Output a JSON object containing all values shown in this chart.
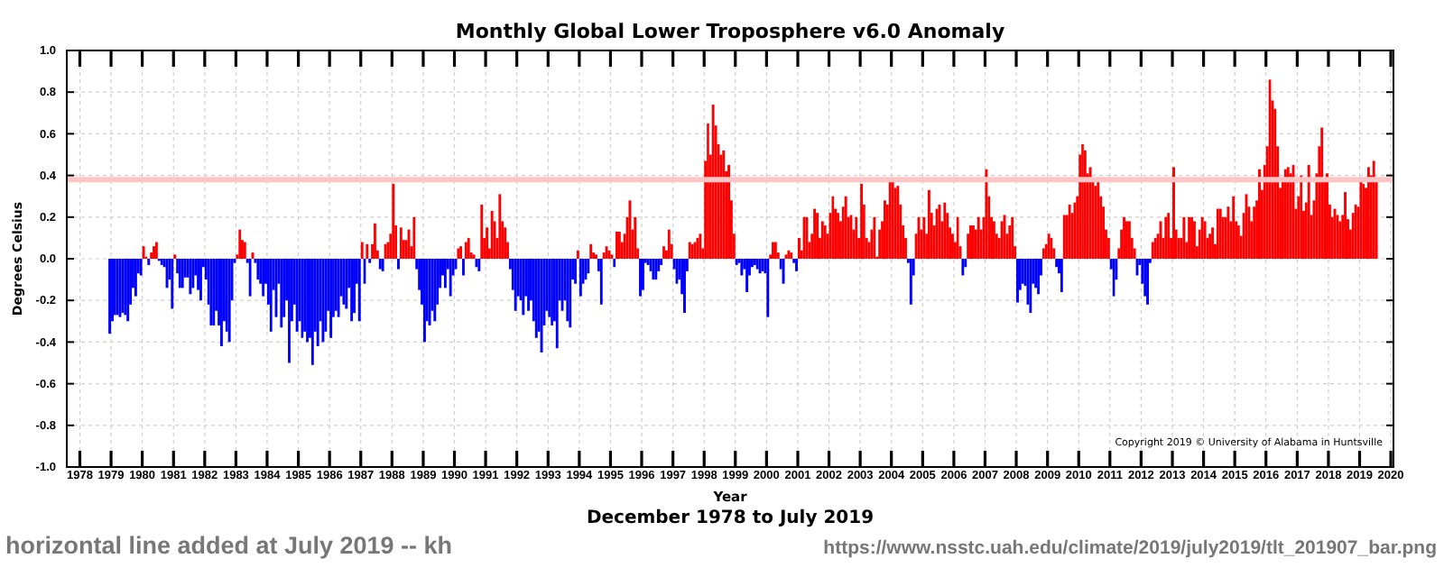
{
  "chart_data": {
    "type": "bar",
    "title": "Monthly Global Lower Troposphere v6.0 Anomaly",
    "xlabel": "Year",
    "ylabel": "Degrees Celsius",
    "annotations": [
      "December 1978 to July 2019",
      "Copyright 2019 © University of Alabama in Huntsville",
      "horizontal line added at July 2019 -- kh",
      "https://www.nsstc.uah.edu/climate/2019/july2019/tlt_201907_bar.png"
    ],
    "x": [
      "1978-12",
      "1979-01",
      "1979-02",
      "1979-03",
      "1979-04",
      "1979-05",
      "1979-06",
      "1979-07",
      "1979-08",
      "1979-09",
      "1979-10",
      "1979-11",
      "1979-12",
      "1980-01",
      "1980-02",
      "1980-03",
      "1980-04",
      "1980-05",
      "1980-06",
      "1980-07",
      "1980-08",
      "1980-09",
      "1980-10",
      "1980-11",
      "1980-12",
      "1981-01",
      "1981-02",
      "1981-03",
      "1981-04",
      "1981-05",
      "1981-06",
      "1981-07",
      "1981-08",
      "1981-09",
      "1981-10",
      "1981-11",
      "1981-12",
      "1982-01",
      "1982-02",
      "1982-03",
      "1982-04",
      "1982-05",
      "1982-06",
      "1982-07",
      "1982-08",
      "1982-09",
      "1982-10",
      "1982-11",
      "1982-12",
      "1983-01",
      "1983-02",
      "1983-03",
      "1983-04",
      "1983-05",
      "1983-06",
      "1983-07",
      "1983-08",
      "1983-09",
      "1983-10",
      "1983-11",
      "1983-12",
      "1984-01",
      "1984-02",
      "1984-03",
      "1984-04",
      "1984-05",
      "1984-06",
      "1984-07",
      "1984-08",
      "1984-09",
      "1984-10",
      "1984-11",
      "1984-12",
      "1985-01",
      "1985-02",
      "1985-03",
      "1985-04",
      "1985-05",
      "1985-06",
      "1985-07",
      "1985-08",
      "1985-09",
      "1985-10",
      "1985-11",
      "1985-12",
      "1986-01",
      "1986-02",
      "1986-03",
      "1986-04",
      "1986-05",
      "1986-06",
      "1986-07",
      "1986-08",
      "1986-09",
      "1986-10",
      "1986-11",
      "1986-12",
      "1987-01",
      "1987-02",
      "1987-03",
      "1987-04",
      "1987-05",
      "1987-06",
      "1987-07",
      "1987-08",
      "1987-09",
      "1987-10",
      "1987-11",
      "1987-12",
      "1988-01",
      "1988-02",
      "1988-03",
      "1988-04",
      "1988-05",
      "1988-06",
      "1988-07",
      "1988-08",
      "1988-09",
      "1988-10",
      "1988-11",
      "1988-12",
      "1989-01",
      "1989-02",
      "1989-03",
      "1989-04",
      "1989-05",
      "1989-06",
      "1989-07",
      "1989-08",
      "1989-09",
      "1989-10",
      "1989-11",
      "1989-12",
      "1990-01",
      "1990-02",
      "1990-03",
      "1990-04",
      "1990-05",
      "1990-06",
      "1990-07",
      "1990-08",
      "1990-09",
      "1990-10",
      "1990-11",
      "1990-12",
      "1991-01",
      "1991-02",
      "1991-03",
      "1991-04",
      "1991-05",
      "1991-06",
      "1991-07",
      "1991-08",
      "1991-09",
      "1991-10",
      "1991-11",
      "1991-12",
      "1992-01",
      "1992-02",
      "1992-03",
      "1992-04",
      "1992-05",
      "1992-06",
      "1992-07",
      "1992-08",
      "1992-09",
      "1992-10",
      "1992-11",
      "1992-12",
      "1993-01",
      "1993-02",
      "1993-03",
      "1993-04",
      "1993-05",
      "1993-06",
      "1993-07",
      "1993-08",
      "1993-09",
      "1993-10",
      "1993-11",
      "1993-12",
      "1994-01",
      "1994-02",
      "1994-03",
      "1994-04",
      "1994-05",
      "1994-06",
      "1994-07",
      "1994-08",
      "1994-09",
      "1994-10",
      "1994-11",
      "1994-12",
      "1995-01",
      "1995-02",
      "1995-03",
      "1995-04",
      "1995-05",
      "1995-06",
      "1995-07",
      "1995-08",
      "1995-09",
      "1995-10",
      "1995-11",
      "1995-12",
      "1996-01",
      "1996-02",
      "1996-03",
      "1996-04",
      "1996-05",
      "1996-06",
      "1996-07",
      "1996-08",
      "1996-09",
      "1996-10",
      "1996-11",
      "1996-12",
      "1997-01",
      "1997-02",
      "1997-03",
      "1997-04",
      "1997-05",
      "1997-06",
      "1997-07",
      "1997-08",
      "1997-09",
      "1997-10",
      "1997-11",
      "1997-12",
      "1998-01",
      "1998-02",
      "1998-03",
      "1998-04",
      "1998-05",
      "1998-06",
      "1998-07",
      "1998-08",
      "1998-09",
      "1998-10",
      "1998-11",
      "1998-12",
      "1999-01",
      "1999-02",
      "1999-03",
      "1999-04",
      "1999-05",
      "1999-06",
      "1999-07",
      "1999-08",
      "1999-09",
      "1999-10",
      "1999-11",
      "1999-12",
      "2000-01",
      "2000-02",
      "2000-03",
      "2000-04",
      "2000-05",
      "2000-06",
      "2000-07",
      "2000-08",
      "2000-09",
      "2000-10",
      "2000-11",
      "2000-12",
      "2001-01",
      "2001-02",
      "2001-03",
      "2001-04",
      "2001-05",
      "2001-06",
      "2001-07",
      "2001-08",
      "2001-09",
      "2001-10",
      "2001-11",
      "2001-12",
      "2002-01",
      "2002-02",
      "2002-03",
      "2002-04",
      "2002-05",
      "2002-06",
      "2002-07",
      "2002-08",
      "2002-09",
      "2002-10",
      "2002-11",
      "2002-12",
      "2003-01",
      "2003-02",
      "2003-03",
      "2003-04",
      "2003-05",
      "2003-06",
      "2003-07",
      "2003-08",
      "2003-09",
      "2003-10",
      "2003-11",
      "2003-12",
      "2004-01",
      "2004-02",
      "2004-03",
      "2004-04",
      "2004-05",
      "2004-06",
      "2004-07",
      "2004-08",
      "2004-09",
      "2004-10",
      "2004-11",
      "2004-12",
      "2005-01",
      "2005-02",
      "2005-03",
      "2005-04",
      "2005-05",
      "2005-06",
      "2005-07",
      "2005-08",
      "2005-09",
      "2005-10",
      "2005-11",
      "2005-12",
      "2006-01",
      "2006-02",
      "2006-03",
      "2006-04",
      "2006-05",
      "2006-06",
      "2006-07",
      "2006-08",
      "2006-09",
      "2006-10",
      "2006-11",
      "2006-12",
      "2007-01",
      "2007-02",
      "2007-03",
      "2007-04",
      "2007-05",
      "2007-06",
      "2007-07",
      "2007-08",
      "2007-09",
      "2007-10",
      "2007-11",
      "2007-12",
      "2008-01",
      "2008-02",
      "2008-03",
      "2008-04",
      "2008-05",
      "2008-06",
      "2008-07",
      "2008-08",
      "2008-09",
      "2008-10",
      "2008-11",
      "2008-12",
      "2009-01",
      "2009-02",
      "2009-03",
      "2009-04",
      "2009-05",
      "2009-06",
      "2009-07",
      "2009-08",
      "2009-09",
      "2009-10",
      "2009-11",
      "2009-12",
      "2010-01",
      "2010-02",
      "2010-03",
      "2010-04",
      "2010-05",
      "2010-06",
      "2010-07",
      "2010-08",
      "2010-09",
      "2010-10",
      "2010-11",
      "2010-12",
      "2011-01",
      "2011-02",
      "2011-03",
      "2011-04",
      "2011-05",
      "2011-06",
      "2011-07",
      "2011-08",
      "2011-09",
      "2011-10",
      "2011-11",
      "2011-12",
      "2012-01",
      "2012-02",
      "2012-03",
      "2012-04",
      "2012-05",
      "2012-06",
      "2012-07",
      "2012-08",
      "2012-09",
      "2012-10",
      "2012-11",
      "2012-12",
      "2013-01",
      "2013-02",
      "2013-03",
      "2013-04",
      "2013-05",
      "2013-06",
      "2013-07",
      "2013-08",
      "2013-09",
      "2013-10",
      "2013-11",
      "2013-12",
      "2014-01",
      "2014-02",
      "2014-03",
      "2014-04",
      "2014-05",
      "2014-06",
      "2014-07",
      "2014-08",
      "2014-09",
      "2014-10",
      "2014-11",
      "2014-12",
      "2015-01",
      "2015-02",
      "2015-03",
      "2015-04",
      "2015-05",
      "2015-06",
      "2015-07",
      "2015-08",
      "2015-09",
      "2015-10",
      "2015-11",
      "2015-12",
      "2016-01",
      "2016-02",
      "2016-03",
      "2016-04",
      "2016-05",
      "2016-06",
      "2016-07",
      "2016-08",
      "2016-09",
      "2016-10",
      "2016-11",
      "2016-12",
      "2017-01",
      "2017-02",
      "2017-03",
      "2017-04",
      "2017-05",
      "2017-06",
      "2017-07",
      "2017-08",
      "2017-09",
      "2017-10",
      "2017-11",
      "2017-12",
      "2018-01",
      "2018-02",
      "2018-03",
      "2018-04",
      "2018-05",
      "2018-06",
      "2018-07",
      "2018-08",
      "2018-09",
      "2018-10",
      "2018-11",
      "2018-12",
      "2019-01",
      "2019-02",
      "2019-03",
      "2019-04",
      "2019-05",
      "2019-06",
      "2019-07"
    ],
    "values": [
      -0.36,
      -0.3,
      -0.27,
      -0.27,
      -0.28,
      -0.26,
      -0.27,
      -0.3,
      -0.22,
      -0.14,
      -0.18,
      -0.07,
      -0.08,
      0.06,
      0.01,
      -0.03,
      0.03,
      0.06,
      0.08,
      -0.01,
      -0.03,
      -0.04,
      -0.14,
      -0.1,
      -0.24,
      0.02,
      -0.07,
      -0.14,
      -0.14,
      -0.09,
      -0.09,
      -0.17,
      -0.14,
      -0.08,
      -0.15,
      -0.2,
      -0.04,
      -0.1,
      -0.22,
      -0.32,
      -0.32,
      -0.25,
      -0.32,
      -0.42,
      -0.3,
      -0.35,
      -0.4,
      -0.2,
      -0.02,
      0.02,
      0.14,
      0.09,
      0.08,
      -0.02,
      -0.18,
      0.03,
      -0.02,
      -0.1,
      -0.12,
      -0.18,
      -0.12,
      -0.22,
      -0.35,
      -0.15,
      -0.28,
      -0.12,
      -0.33,
      -0.28,
      -0.2,
      -0.5,
      -0.3,
      -0.22,
      -0.35,
      -0.3,
      -0.38,
      -0.35,
      -0.4,
      -0.38,
      -0.51,
      -0.35,
      -0.42,
      -0.3,
      -0.4,
      -0.35,
      -0.25,
      -0.38,
      -0.28,
      -0.25,
      -0.28,
      -0.18,
      -0.22,
      -0.24,
      -0.14,
      -0.3,
      -0.26,
      -0.12,
      -0.3,
      0.08,
      -0.12,
      0.07,
      -0.02,
      0.07,
      0.17,
      0.04,
      -0.05,
      -0.06,
      0.07,
      0.08,
      0.12,
      0.36,
      0.16,
      -0.05,
      0.15,
      0.09,
      0.09,
      0.14,
      0.06,
      0.2,
      -0.05,
      -0.15,
      -0.22,
      -0.4,
      -0.3,
      -0.32,
      -0.25,
      -0.3,
      -0.22,
      -0.14,
      -0.08,
      -0.14,
      -0.05,
      -0.18,
      -0.08,
      -0.05,
      0.05,
      0.06,
      -0.08,
      0.08,
      0.1,
      0.03,
      0.02,
      -0.04,
      -0.06,
      0.26,
      0.1,
      0.15,
      0.05,
      0.23,
      0.18,
      0.1,
      0.31,
      0.18,
      0.15,
      0.08,
      -0.05,
      -0.15,
      -0.25,
      -0.18,
      -0.2,
      -0.27,
      -0.18,
      -0.25,
      -0.2,
      -0.3,
      -0.38,
      -0.35,
      -0.45,
      -0.32,
      -0.25,
      -0.28,
      -0.32,
      -0.3,
      -0.43,
      -0.2,
      -0.25,
      -0.2,
      -0.3,
      -0.33,
      -0.1,
      -0.12,
      0.04,
      -0.18,
      -0.12,
      -0.1,
      -0.07,
      0.07,
      0.03,
      0.02,
      -0.06,
      -0.22,
      0.03,
      0.06,
      0.04,
      0.02,
      -0.04,
      0.13,
      0.13,
      0.08,
      0.12,
      0.2,
      0.28,
      0.14,
      0.2,
      0.05,
      -0.18,
      -0.15,
      -0.02,
      -0.03,
      -0.06,
      -0.1,
      -0.1,
      -0.06,
      -0.03,
      0.06,
      0.04,
      0.14,
      0.07,
      -0.05,
      -0.12,
      -0.1,
      -0.17,
      -0.26,
      -0.06,
      0.08,
      0.07,
      0.08,
      0.1,
      0.12,
      0.05,
      0.47,
      0.65,
      0.5,
      0.74,
      0.64,
      0.55,
      0.5,
      0.52,
      0.42,
      0.45,
      0.28,
      0.12,
      -0.03,
      -0.02,
      -0.08,
      -0.05,
      -0.16,
      -0.08,
      -0.04,
      -0.03,
      -0.05,
      -0.07,
      -0.06,
      -0.07,
      -0.28,
      0.02,
      0.08,
      0.08,
      0.03,
      -0.05,
      -0.12,
      0.02,
      0.04,
      0.03,
      -0.02,
      -0.06,
      0.1,
      0.04,
      0.2,
      0.2,
      0.08,
      0.12,
      0.24,
      0.22,
      0.1,
      0.18,
      0.16,
      0.12,
      0.22,
      0.3,
      0.24,
      0.22,
      0.18,
      0.25,
      0.3,
      0.2,
      0.21,
      0.14,
      0.2,
      0.1,
      0.36,
      0.26,
      0.1,
      0.08,
      0.14,
      0.2,
      0.01,
      0.14,
      0.18,
      0.28,
      0.26,
      0.37,
      0.37,
      0.34,
      0.35,
      0.26,
      0.16,
      0.1,
      -0.02,
      -0.22,
      -0.08,
      0.12,
      0.2,
      0.14,
      0.2,
      0.12,
      0.33,
      0.22,
      0.16,
      0.24,
      0.26,
      0.18,
      0.27,
      0.22,
      0.15,
      0.12,
      0.08,
      0.2,
      0.06,
      -0.08,
      -0.04,
      0.12,
      0.16,
      0.16,
      0.14,
      0.2,
      0.14,
      0.2,
      0.43,
      0.3,
      0.2,
      0.18,
      0.12,
      0.1,
      0.18,
      0.21,
      0.12,
      0.16,
      0.2,
      0.06,
      -0.21,
      -0.15,
      -0.12,
      -0.13,
      -0.22,
      -0.26,
      -0.12,
      -0.14,
      -0.17,
      -0.08,
      0.05,
      0.07,
      0.12,
      0.1,
      0.05,
      -0.04,
      -0.07,
      -0.16,
      0.21,
      0.21,
      0.26,
      0.22,
      0.27,
      0.3,
      0.5,
      0.55,
      0.52,
      0.41,
      0.44,
      0.38,
      0.35,
      0.38,
      0.3,
      0.25,
      0.14,
      0.1,
      -0.05,
      -0.18,
      -0.1,
      0.05,
      0.14,
      0.2,
      0.18,
      0.18,
      0.1,
      0.05,
      -0.08,
      -0.03,
      -0.12,
      -0.18,
      -0.22,
      -0.02,
      0.08,
      0.1,
      0.12,
      0.18,
      0.1,
      0.2,
      0.22,
      0.1,
      0.44,
      0.14,
      0.1,
      0.1,
      0.2,
      0.08,
      0.2,
      0.2,
      0.18,
      0.06,
      0.14,
      0.2,
      0.18,
      0.1,
      0.12,
      0.15,
      0.07,
      0.24,
      0.24,
      0.2,
      0.2,
      0.25,
      0.18,
      0.3,
      0.18,
      0.16,
      0.11,
      0.22,
      0.31,
      0.25,
      0.18,
      0.25,
      0.28,
      0.43,
      0.33,
      0.45,
      0.54,
      0.86,
      0.76,
      0.72,
      0.54,
      0.34,
      0.39,
      0.43,
      0.44,
      0.41,
      0.45,
      0.24,
      0.3,
      0.4,
      0.23,
      0.27,
      0.45,
      0.21,
      0.28,
      0.41,
      0.54,
      0.63,
      0.37,
      0.41,
      0.26,
      0.2,
      0.24,
      0.21,
      0.18,
      0.21,
      0.32,
      0.19,
      0.14,
      0.22,
      0.26,
      0.25,
      0.38,
      0.36,
      0.34,
      0.44,
      0.4,
      0.47,
      0.38
    ],
    "colors": [
      "#0000ff",
      "#0000ff",
      "#0000ff",
      "#0000ff",
      "#0000ff",
      "#0000ff",
      "#0000ff",
      "#0000ff",
      "#0000ff",
      "#0000ff",
      "#0000ff",
      "#0000ff",
      "#0000ff",
      "#ff0000",
      "#ff0000",
      "#0000ff",
      "#ff0000",
      "#ff0000",
      "#ff0000",
      "#0000ff",
      "#0000ff",
      "#0000ff",
      "#0000ff",
      "#0000ff",
      "#0000ff",
      "#ff0000",
      "#0000ff",
      "#0000ff",
      "#0000ff",
      "#0000ff",
      "#0000ff",
      "#0000ff",
      "#0000ff",
      "#0000ff",
      "#0000ff",
      "#0000ff",
      "#0000ff",
      "#0000ff",
      "#0000ff",
      "#0000ff",
      "#0000ff",
      "#0000ff",
      "#0000ff",
      "#0000ff",
      "#0000ff",
      "#0000ff",
      "#0000ff",
      "#0000ff",
      "#0000ff",
      "#ff0000",
      "#ff0000",
      "#ff0000",
      "#ff0000",
      "#0000ff",
      "#0000ff",
      "#ff0000",
      "#0000ff",
      "#0000ff",
      "#0000ff",
      "#0000ff",
      "#0000ff",
      "#0000ff",
      "#0000ff",
      "#0000ff",
      "#0000ff",
      "#0000ff",
      "#0000ff",
      "#0000ff",
      "#0000ff",
      "#0000ff",
      "#0000ff",
      "#0000ff",
      "#0000ff",
      "#0000ff",
      "#0000ff",
      "#0000ff",
      "#0000ff",
      "#0000ff",
      "#0000ff",
      "#0000ff",
      "#0000ff",
      "#0000ff",
      "#0000ff",
      "#0000ff",
      "#0000ff",
      "#0000ff",
      "#0000ff",
      "#0000ff",
      "#0000ff",
      "#0000ff",
      "#0000ff",
      "#0000ff",
      "#0000ff",
      "#0000ff",
      "#0000ff",
      "#0000ff",
      "#0000ff",
      "#ff0000",
      "#0000ff",
      "#ff0000",
      "#0000ff",
      "#ff0000",
      "#ff0000",
      "#ff0000",
      "#0000ff",
      "#0000ff",
      "#ff0000",
      "#ff0000",
      "#ff0000",
      "#ff0000",
      "#ff0000",
      "#0000ff",
      "#ff0000",
      "#ff0000",
      "#ff0000",
      "#ff0000",
      "#ff0000",
      "#ff0000",
      "#0000ff",
      "#0000ff",
      "#0000ff",
      "#0000ff",
      "#0000ff",
      "#0000ff",
      "#0000ff",
      "#0000ff",
      "#0000ff",
      "#0000ff",
      "#0000ff",
      "#0000ff",
      "#0000ff",
      "#0000ff",
      "#0000ff",
      "#0000ff",
      "#ff0000",
      "#ff0000",
      "#0000ff",
      "#ff0000",
      "#ff0000",
      "#ff0000",
      "#ff0000",
      "#0000ff",
      "#0000ff",
      "#ff0000",
      "#ff0000",
      "#ff0000",
      "#ff0000",
      "#ff0000",
      "#ff0000",
      "#ff0000",
      "#ff0000",
      "#ff0000",
      "#ff0000",
      "#ff0000",
      "#0000ff",
      "#0000ff",
      "#0000ff",
      "#0000ff",
      "#0000ff",
      "#0000ff",
      "#0000ff",
      "#0000ff",
      "#0000ff",
      "#0000ff",
      "#0000ff",
      "#0000ff",
      "#0000ff",
      "#0000ff",
      "#0000ff",
      "#0000ff",
      "#0000ff",
      "#0000ff",
      "#0000ff",
      "#0000ff",
      "#0000ff",
      "#0000ff",
      "#0000ff",
      "#0000ff",
      "#0000ff",
      "#0000ff",
      "#ff0000",
      "#0000ff",
      "#0000ff",
      "#0000ff",
      "#0000ff",
      "#ff0000",
      "#ff0000",
      "#ff0000",
      "#0000ff",
      "#0000ff",
      "#ff0000",
      "#ff0000",
      "#ff0000",
      "#ff0000",
      "#0000ff",
      "#ff0000",
      "#ff0000",
      "#ff0000",
      "#ff0000",
      "#ff0000",
      "#ff0000",
      "#ff0000",
      "#ff0000",
      "#ff0000",
      "#0000ff",
      "#0000ff",
      "#0000ff",
      "#0000ff",
      "#0000ff",
      "#0000ff",
      "#0000ff",
      "#0000ff",
      "#0000ff",
      "#ff0000",
      "#ff0000",
      "#ff0000",
      "#ff0000",
      "#0000ff",
      "#0000ff",
      "#0000ff",
      "#0000ff",
      "#0000ff",
      "#0000ff",
      "#ff0000",
      "#ff0000",
      "#ff0000",
      "#ff0000",
      "#ff0000",
      "#ff0000",
      "#ff0000",
      "#ff0000",
      "#ff0000",
      "#ff0000",
      "#ff0000",
      "#ff0000",
      "#ff0000",
      "#ff0000",
      "#ff0000",
      "#ff0000",
      "#ff0000",
      "#ff0000",
      "#0000ff",
      "#0000ff",
      "#0000ff",
      "#0000ff",
      "#0000ff",
      "#0000ff",
      "#0000ff",
      "#0000ff",
      "#0000ff",
      "#0000ff",
      "#0000ff",
      "#0000ff",
      "#0000ff",
      "#ff0000",
      "#ff0000",
      "#ff0000",
      "#ff0000",
      "#0000ff",
      "#0000ff",
      "#ff0000",
      "#ff0000",
      "#ff0000",
      "#0000ff",
      "#0000ff",
      "#ff0000",
      "#ff0000",
      "#ff0000",
      "#ff0000",
      "#ff0000",
      "#ff0000",
      "#ff0000",
      "#ff0000",
      "#ff0000",
      "#ff0000",
      "#ff0000",
      "#ff0000",
      "#ff0000",
      "#ff0000",
      "#ff0000",
      "#ff0000",
      "#ff0000",
      "#ff0000",
      "#ff0000",
      "#ff0000",
      "#ff0000",
      "#ff0000",
      "#ff0000",
      "#ff0000",
      "#ff0000",
      "#ff0000",
      "#ff0000",
      "#ff0000",
      "#ff0000",
      "#ff0000",
      "#ff0000",
      "#ff0000",
      "#ff0000",
      "#ff0000",
      "#ff0000",
      "#ff0000",
      "#ff0000",
      "#ff0000",
      "#ff0000",
      "#ff0000",
      "#ff0000",
      "#ff0000",
      "#0000ff",
      "#0000ff",
      "#0000ff",
      "#ff0000",
      "#ff0000",
      "#ff0000",
      "#ff0000",
      "#ff0000",
      "#ff0000",
      "#ff0000",
      "#ff0000",
      "#ff0000",
      "#ff0000",
      "#ff0000",
      "#ff0000",
      "#ff0000",
      "#ff0000",
      "#ff0000",
      "#ff0000",
      "#ff0000",
      "#ff0000",
      "#0000ff",
      "#0000ff",
      "#ff0000",
      "#ff0000",
      "#ff0000",
      "#ff0000",
      "#ff0000",
      "#ff0000",
      "#ff0000",
      "#ff0000",
      "#ff0000",
      "#ff0000",
      "#ff0000",
      "#ff0000",
      "#ff0000",
      "#ff0000",
      "#ff0000",
      "#ff0000",
      "#ff0000",
      "#ff0000",
      "#ff0000",
      "#0000ff",
      "#0000ff",
      "#0000ff",
      "#0000ff",
      "#0000ff",
      "#0000ff",
      "#0000ff",
      "#0000ff",
      "#0000ff",
      "#0000ff",
      "#ff0000",
      "#ff0000",
      "#ff0000",
      "#ff0000",
      "#ff0000",
      "#0000ff",
      "#0000ff",
      "#0000ff",
      "#ff0000",
      "#ff0000",
      "#ff0000",
      "#ff0000",
      "#ff0000",
      "#ff0000",
      "#ff0000",
      "#ff0000",
      "#ff0000",
      "#ff0000",
      "#ff0000",
      "#ff0000",
      "#ff0000",
      "#ff0000",
      "#ff0000",
      "#ff0000",
      "#ff0000",
      "#ff0000",
      "#0000ff",
      "#0000ff",
      "#0000ff",
      "#ff0000",
      "#ff0000",
      "#ff0000",
      "#ff0000",
      "#ff0000",
      "#ff0000",
      "#ff0000",
      "#0000ff",
      "#0000ff",
      "#0000ff",
      "#0000ff",
      "#0000ff",
      "#0000ff",
      "#ff0000",
      "#ff0000",
      "#ff0000",
      "#ff0000",
      "#ff0000",
      "#ff0000",
      "#ff0000",
      "#ff0000",
      "#ff0000",
      "#ff0000",
      "#ff0000",
      "#ff0000",
      "#ff0000",
      "#ff0000",
      "#ff0000",
      "#ff0000",
      "#ff0000",
      "#ff0000",
      "#ff0000",
      "#ff0000",
      "#ff0000",
      "#ff0000",
      "#ff0000",
      "#ff0000",
      "#ff0000",
      "#ff0000",
      "#ff0000",
      "#ff0000",
      "#ff0000",
      "#ff0000",
      "#ff0000",
      "#ff0000",
      "#ff0000",
      "#ff0000",
      "#ff0000",
      "#ff0000",
      "#ff0000",
      "#ff0000",
      "#ff0000",
      "#ff0000",
      "#ff0000",
      "#ff0000",
      "#ff0000",
      "#ff0000",
      "#ff0000",
      "#ff0000",
      "#ff0000",
      "#ff0000",
      "#ff0000",
      "#ff0000",
      "#ff0000",
      "#ff0000",
      "#ff0000",
      "#ff0000",
      "#ff0000",
      "#ff0000",
      "#ff0000",
      "#ff0000",
      "#ff0000",
      "#ff0000",
      "#ff0000",
      "#ff0000",
      "#ff0000",
      "#ff0000",
      "#ff0000",
      "#ff0000",
      "#ff0000",
      "#ff0000",
      "#ff0000",
      "#ff0000",
      "#ff0000",
      "#ff0000",
      "#ff0000",
      "#ff0000",
      "#ff0000",
      "#ff0000",
      "#ff0000",
      "#ff0000",
      "#ff0000",
      "#ff0000",
      "#ff0000",
      "#ff0000",
      "#ff0000",
      "#ff0000",
      "#ff0000",
      "#ff0000",
      "#ff0000"
    ],
    "xlim": [
      "1977-08",
      "2020-02"
    ],
    "xticks": [
      "1978",
      "1979",
      "1980",
      "1981",
      "1982",
      "1983",
      "1984",
      "1985",
      "1986",
      "1987",
      "1988",
      "1989",
      "1990",
      "1991",
      "1992",
      "1993",
      "1994",
      "1995",
      "1996",
      "1997",
      "1998",
      "1999",
      "2000",
      "2001",
      "2002",
      "2003",
      "2004",
      "2005",
      "2006",
      "2007",
      "2008",
      "2009",
      "2010",
      "2011",
      "2012",
      "2013",
      "2014",
      "2015",
      "2016",
      "2017",
      "2018",
      "2019",
      "2020"
    ],
    "ylim": [
      -1,
      1
    ],
    "yticks": [
      {
        "value": -1,
        "label": "-1.0"
      },
      {
        "value": -0.8,
        "label": "-0.8"
      },
      {
        "value": -0.6,
        "label": "-0.6"
      },
      {
        "value": -0.4,
        "label": "-0.4"
      },
      {
        "value": -0.2,
        "label": "-0.2"
      },
      {
        "value": 0,
        "label": "0.0"
      },
      {
        "value": 0.2,
        "label": "0.2"
      },
      {
        "value": 0.4,
        "label": "0.4"
      },
      {
        "value": 0.6,
        "label": "0.6"
      },
      {
        "value": 0.8,
        "label": "0.8"
      },
      {
        "value": 1,
        "label": "1.0"
      }
    ],
    "ref_lines": [
      {
        "axis": "y",
        "value": 0.38,
        "color": "#ffc4c4"
      }
    ],
    "grid": true
  }
}
